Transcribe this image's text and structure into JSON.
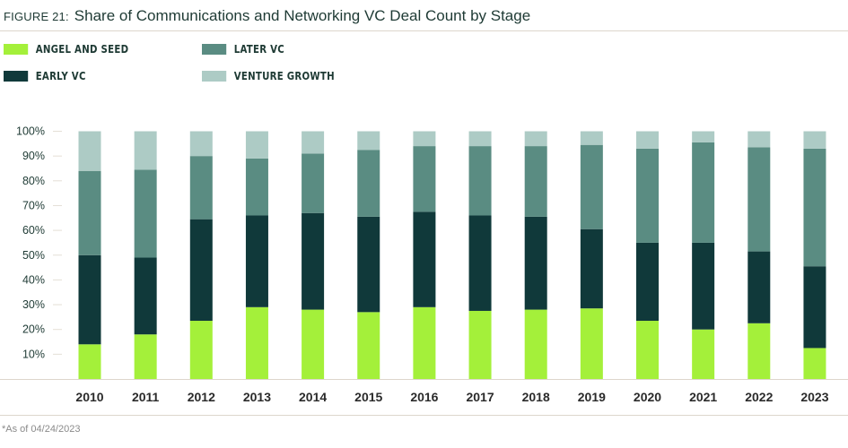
{
  "figure_label": "FIGURE 21:",
  "title": "Share of Communications and Networking VC Deal Count by Stage",
  "footnote": "*As of 04/24/2023",
  "chart_data": {
    "type": "bar",
    "stacked": true,
    "categories": [
      "2010",
      "2011",
      "2012",
      "2013",
      "2014",
      "2015",
      "2016",
      "2017",
      "2018",
      "2019",
      "2020",
      "2021",
      "2022",
      "2023"
    ],
    "series": [
      {
        "name": "ANGEL AND SEED",
        "color": "#a4f03a",
        "values": [
          14,
          18,
          23.5,
          29,
          28,
          27,
          29,
          27.5,
          28,
          28.5,
          23.5,
          20,
          22.5,
          12.5
        ]
      },
      {
        "name": "EARLY VC",
        "color": "#10393a",
        "values": [
          36,
          31,
          41,
          37,
          39,
          38.5,
          38.5,
          38.5,
          37.5,
          32,
          31.5,
          35,
          29,
          33
        ]
      },
      {
        "name": "LATER VC",
        "color": "#5a8c82",
        "values": [
          34,
          35.5,
          25.5,
          23,
          24,
          27,
          26.5,
          28,
          28.5,
          34,
          38,
          40.5,
          42,
          47.5
        ]
      },
      {
        "name": "VENTURE GROWTH",
        "color": "#adcbc5",
        "values": [
          16,
          15.5,
          10,
          11,
          9,
          7.5,
          6,
          6,
          6,
          5.5,
          7,
          4.5,
          6.5,
          7
        ]
      }
    ],
    "yticks": [
      "10%",
      "20%",
      "30%",
      "40%",
      "50%",
      "60%",
      "70%",
      "80%",
      "90%",
      "100%"
    ],
    "ylim": [
      0,
      100
    ],
    "legend_position": "top-left",
    "grid": false
  }
}
